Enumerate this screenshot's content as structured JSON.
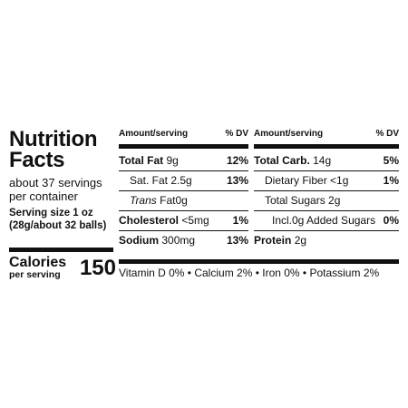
{
  "label": {
    "title_line1": "Nutrition",
    "title_line2": "Facts",
    "servings_per_container": "about 37 servings per container",
    "serving_size_line1": "Serving size 1 oz",
    "serving_size_line2": "(28g/about 32 balls)",
    "calories_label": "Calories",
    "calories_sub": "per serving",
    "calories_value": "150"
  },
  "columns": {
    "header_amount": "Amount/serving",
    "header_dv": "% DV"
  },
  "left_rows": [
    {
      "name": "Total Fat",
      "amount": "9g",
      "dv": "12%"
    },
    {
      "name": "Sat. Fat",
      "amount": "2.5g",
      "dv": "13%"
    },
    {
      "name_italic": "Trans",
      "name": "Fat",
      "amount": "0g",
      "dv": ""
    },
    {
      "name": "Cholesterol",
      "amount": "<5mg",
      "dv": "1%"
    },
    {
      "name": "Sodium",
      "amount": "300mg",
      "dv": "13%"
    }
  ],
  "right_rows": [
    {
      "name": "Total Carb.",
      "amount": "14g",
      "dv": "5%"
    },
    {
      "name": "Dietary Fiber",
      "amount": "<1g",
      "dv": "1%"
    },
    {
      "name": "Total Sugars",
      "amount": "2g",
      "dv": ""
    },
    {
      "name": "Incl.0g Added Sugars",
      "amount": "",
      "dv": "0%"
    },
    {
      "name": "Protein",
      "amount": "2g",
      "dv": ""
    }
  ],
  "vitamins": "Vitamin D 0% • Calcium 2% • Iron 0% • Potassium 2%"
}
